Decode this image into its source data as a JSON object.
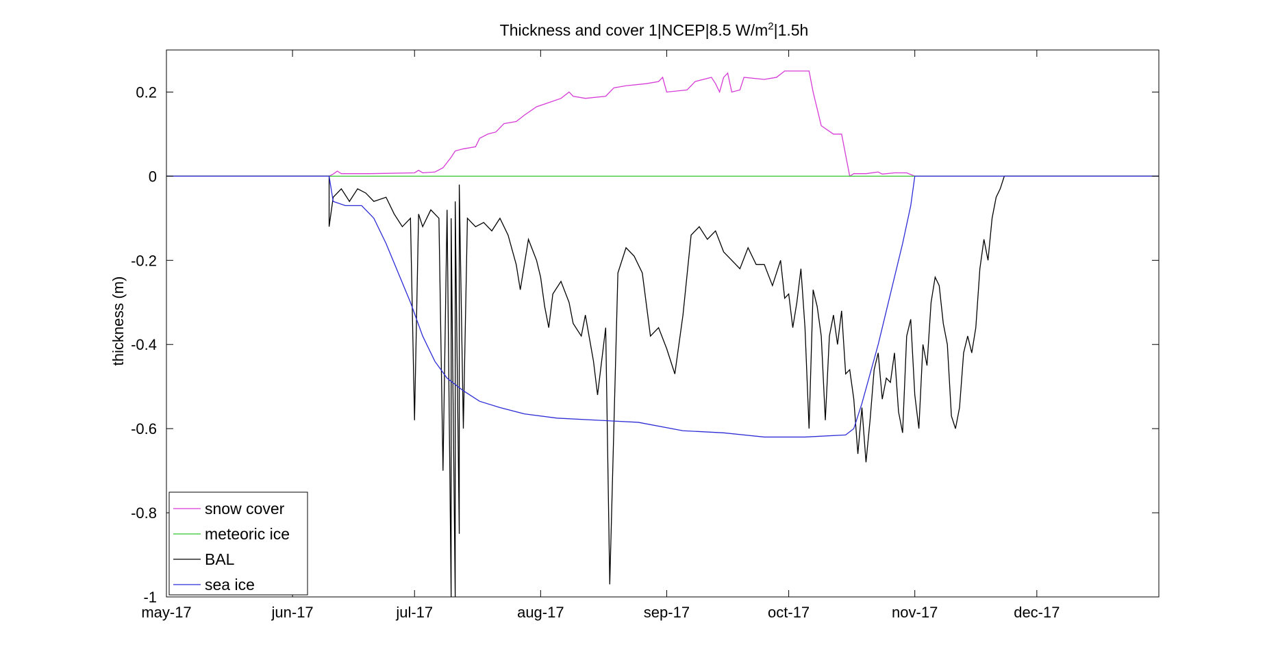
{
  "chart_data": {
    "type": "line",
    "title_main": "Thickness and cover 1|NCEP|8.5 W/m",
    "title_sup": "2",
    "title_tail": "|1.5h",
    "xlabel": "",
    "ylabel": "thickness (m)",
    "x_axis": "date",
    "xlim": [
      "2017-05-01",
      "2017-12-31"
    ],
    "ylim": [
      -1,
      0.3
    ],
    "yticks": [
      -1,
      -0.8,
      -0.6,
      -0.4,
      -0.2,
      0,
      0.2
    ],
    "ytick_labels": [
      "-1",
      "-0.8",
      "-0.6",
      "-0.4",
      "-0.2",
      "0",
      "0.2"
    ],
    "xticks": [
      "2017-05-01",
      "2017-06-01",
      "2017-07-01",
      "2017-08-01",
      "2017-09-01",
      "2017-10-01",
      "2017-11-01",
      "2017-12-01"
    ],
    "xtick_labels": [
      "may-17",
      "jun-17",
      "jul-17",
      "aug-17",
      "sep-17",
      "oct-17",
      "nov-17",
      "dec-17"
    ],
    "grid": false,
    "legend_position": "bottom-left",
    "series": [
      {
        "name": "snow cover",
        "color": "#d63ad6",
        "points": [
          [
            "2017-05-01",
            0
          ],
          [
            "2017-06-10",
            0
          ],
          [
            "2017-06-11",
            0.005
          ],
          [
            "2017-06-12",
            0.012
          ],
          [
            "2017-06-13",
            0.006
          ],
          [
            "2017-06-20",
            0.006
          ],
          [
            "2017-07-01",
            0.008
          ],
          [
            "2017-07-02",
            0.014
          ],
          [
            "2017-07-03",
            0.008
          ],
          [
            "2017-07-06",
            0.01
          ],
          [
            "2017-07-08",
            0.02
          ],
          [
            "2017-07-10",
            0.045
          ],
          [
            "2017-07-11",
            0.06
          ],
          [
            "2017-07-13",
            0.065
          ],
          [
            "2017-07-16",
            0.07
          ],
          [
            "2017-07-17",
            0.09
          ],
          [
            "2017-07-19",
            0.1
          ],
          [
            "2017-07-21",
            0.105
          ],
          [
            "2017-07-23",
            0.125
          ],
          [
            "2017-07-26",
            0.13
          ],
          [
            "2017-07-28",
            0.145
          ],
          [
            "2017-07-31",
            0.165
          ],
          [
            "2017-08-03",
            0.175
          ],
          [
            "2017-08-06",
            0.185
          ],
          [
            "2017-08-08",
            0.2
          ],
          [
            "2017-08-09",
            0.19
          ],
          [
            "2017-08-12",
            0.185
          ],
          [
            "2017-08-17",
            0.19
          ],
          [
            "2017-08-19",
            0.21
          ],
          [
            "2017-08-22",
            0.215
          ],
          [
            "2017-08-27",
            0.22
          ],
          [
            "2017-08-30",
            0.225
          ],
          [
            "2017-08-31",
            0.235
          ],
          [
            "2017-09-01",
            0.2
          ],
          [
            "2017-09-06",
            0.205
          ],
          [
            "2017-09-08",
            0.225
          ],
          [
            "2017-09-12",
            0.235
          ],
          [
            "2017-09-13",
            0.22
          ],
          [
            "2017-09-14",
            0.2
          ],
          [
            "2017-09-15",
            0.235
          ],
          [
            "2017-09-16",
            0.245
          ],
          [
            "2017-09-17",
            0.2
          ],
          [
            "2017-09-19",
            0.205
          ],
          [
            "2017-09-20",
            0.235
          ],
          [
            "2017-09-25",
            0.23
          ],
          [
            "2017-09-28",
            0.235
          ],
          [
            "2017-09-30",
            0.25
          ],
          [
            "2017-10-06",
            0.25
          ],
          [
            "2017-10-07",
            0.2
          ],
          [
            "2017-10-09",
            0.12
          ],
          [
            "2017-10-12",
            0.1
          ],
          [
            "2017-10-14",
            0.1
          ],
          [
            "2017-10-16",
            0.0
          ],
          [
            "2017-10-17",
            0.006
          ],
          [
            "2017-10-20",
            0.006
          ],
          [
            "2017-10-23",
            0.01
          ],
          [
            "2017-10-24",
            0.005
          ],
          [
            "2017-10-27",
            0.008
          ],
          [
            "2017-10-30",
            0.008
          ],
          [
            "2017-11-01",
            0
          ],
          [
            "2017-12-31",
            0
          ]
        ]
      },
      {
        "name": "meteoric ice",
        "color": "#2ec82e",
        "points": [
          [
            "2017-05-01",
            0
          ],
          [
            "2017-12-31",
            0
          ]
        ]
      },
      {
        "name": "BAL",
        "color": "#000000",
        "points": [
          [
            "2017-05-01",
            0
          ],
          [
            "2017-06-10",
            0
          ],
          [
            "2017-06-10",
            -0.12
          ],
          [
            "2017-06-11",
            -0.05
          ],
          [
            "2017-06-13",
            -0.03
          ],
          [
            "2017-06-15",
            -0.06
          ],
          [
            "2017-06-17",
            -0.03
          ],
          [
            "2017-06-19",
            -0.04
          ],
          [
            "2017-06-21",
            -0.06
          ],
          [
            "2017-06-24",
            -0.05
          ],
          [
            "2017-06-26",
            -0.09
          ],
          [
            "2017-06-28",
            -0.12
          ],
          [
            "2017-06-30",
            -0.1
          ],
          [
            "2017-07-01",
            -0.58
          ],
          [
            "2017-07-02",
            -0.09
          ],
          [
            "2017-07-03",
            -0.12
          ],
          [
            "2017-07-05",
            -0.08
          ],
          [
            "2017-07-07",
            -0.1
          ],
          [
            "2017-07-08",
            -0.7
          ],
          [
            "2017-07-09",
            -0.08
          ],
          [
            "2017-07-10",
            -1.0
          ],
          [
            "2017-07-10",
            -0.1
          ],
          [
            "2017-07-11",
            -1.0
          ],
          [
            "2017-07-11",
            -0.06
          ],
          [
            "2017-07-12",
            -0.85
          ],
          [
            "2017-07-12",
            -0.02
          ],
          [
            "2017-07-13",
            -0.6
          ],
          [
            "2017-07-14",
            -0.1
          ],
          [
            "2017-07-16",
            -0.12
          ],
          [
            "2017-07-18",
            -0.11
          ],
          [
            "2017-07-20",
            -0.13
          ],
          [
            "2017-07-22",
            -0.1
          ],
          [
            "2017-07-24",
            -0.14
          ],
          [
            "2017-07-26",
            -0.21
          ],
          [
            "2017-07-27",
            -0.27
          ],
          [
            "2017-07-29",
            -0.15
          ],
          [
            "2017-07-31",
            -0.2
          ],
          [
            "2017-08-01",
            -0.24
          ],
          [
            "2017-08-02",
            -0.31
          ],
          [
            "2017-08-03",
            -0.36
          ],
          [
            "2017-08-04",
            -0.28
          ],
          [
            "2017-08-06",
            -0.25
          ],
          [
            "2017-08-08",
            -0.3
          ],
          [
            "2017-08-09",
            -0.35
          ],
          [
            "2017-08-11",
            -0.38
          ],
          [
            "2017-08-12",
            -0.33
          ],
          [
            "2017-08-14",
            -0.44
          ],
          [
            "2017-08-15",
            -0.52
          ],
          [
            "2017-08-17",
            -0.36
          ],
          [
            "2017-08-18",
            -0.97
          ],
          [
            "2017-08-20",
            -0.23
          ],
          [
            "2017-08-22",
            -0.17
          ],
          [
            "2017-08-24",
            -0.19
          ],
          [
            "2017-08-26",
            -0.23
          ],
          [
            "2017-08-28",
            -0.38
          ],
          [
            "2017-08-30",
            -0.36
          ],
          [
            "2017-09-01",
            -0.41
          ],
          [
            "2017-09-03",
            -0.47
          ],
          [
            "2017-09-05",
            -0.33
          ],
          [
            "2017-09-07",
            -0.14
          ],
          [
            "2017-09-09",
            -0.12
          ],
          [
            "2017-09-11",
            -0.15
          ],
          [
            "2017-09-13",
            -0.13
          ],
          [
            "2017-09-15",
            -0.18
          ],
          [
            "2017-09-17",
            -0.2
          ],
          [
            "2017-09-19",
            -0.22
          ],
          [
            "2017-09-21",
            -0.17
          ],
          [
            "2017-09-23",
            -0.21
          ],
          [
            "2017-09-25",
            -0.21
          ],
          [
            "2017-09-27",
            -0.26
          ],
          [
            "2017-09-29",
            -0.2
          ],
          [
            "2017-09-30",
            -0.29
          ],
          [
            "2017-10-01",
            -0.28
          ],
          [
            "2017-10-02",
            -0.36
          ],
          [
            "2017-10-03",
            -0.3
          ],
          [
            "2017-10-04",
            -0.22
          ],
          [
            "2017-10-05",
            -0.36
          ],
          [
            "2017-10-06",
            -0.6
          ],
          [
            "2017-10-07",
            -0.27
          ],
          [
            "2017-10-08",
            -0.31
          ],
          [
            "2017-10-09",
            -0.38
          ],
          [
            "2017-10-10",
            -0.58
          ],
          [
            "2017-10-11",
            -0.38
          ],
          [
            "2017-10-12",
            -0.33
          ],
          [
            "2017-10-13",
            -0.4
          ],
          [
            "2017-10-14",
            -0.32
          ],
          [
            "2017-10-15",
            -0.47
          ],
          [
            "2017-10-16",
            -0.46
          ],
          [
            "2017-10-17",
            -0.53
          ],
          [
            "2017-10-18",
            -0.66
          ],
          [
            "2017-10-19",
            -0.55
          ],
          [
            "2017-10-20",
            -0.68
          ],
          [
            "2017-10-21",
            -0.58
          ],
          [
            "2017-10-22",
            -0.46
          ],
          [
            "2017-10-23",
            -0.42
          ],
          [
            "2017-10-24",
            -0.53
          ],
          [
            "2017-10-25",
            -0.48
          ],
          [
            "2017-10-26",
            -0.49
          ],
          [
            "2017-10-27",
            -0.42
          ],
          [
            "2017-10-28",
            -0.56
          ],
          [
            "2017-10-29",
            -0.61
          ],
          [
            "2017-10-30",
            -0.38
          ],
          [
            "2017-10-31",
            -0.34
          ],
          [
            "2017-11-01",
            -0.52
          ],
          [
            "2017-11-02",
            -0.6
          ],
          [
            "2017-11-03",
            -0.4
          ],
          [
            "2017-11-04",
            -0.45
          ],
          [
            "2017-11-05",
            -0.3
          ],
          [
            "2017-11-06",
            -0.24
          ],
          [
            "2017-11-07",
            -0.26
          ],
          [
            "2017-11-08",
            -0.35
          ],
          [
            "2017-11-09",
            -0.4
          ],
          [
            "2017-11-10",
            -0.57
          ],
          [
            "2017-11-11",
            -0.6
          ],
          [
            "2017-11-12",
            -0.55
          ],
          [
            "2017-11-13",
            -0.42
          ],
          [
            "2017-11-14",
            -0.38
          ],
          [
            "2017-11-15",
            -0.42
          ],
          [
            "2017-11-16",
            -0.36
          ],
          [
            "2017-11-17",
            -0.22
          ],
          [
            "2017-11-18",
            -0.15
          ],
          [
            "2017-11-19",
            -0.2
          ],
          [
            "2017-11-20",
            -0.1
          ],
          [
            "2017-11-21",
            -0.05
          ],
          [
            "2017-11-22",
            -0.03
          ],
          [
            "2017-11-23",
            0
          ],
          [
            "2017-12-31",
            0
          ]
        ]
      },
      {
        "name": "sea ice",
        "color": "#2b2bd6",
        "points": [
          [
            "2017-05-01",
            0
          ],
          [
            "2017-06-10",
            0
          ],
          [
            "2017-06-11",
            -0.06
          ],
          [
            "2017-06-14",
            -0.07
          ],
          [
            "2017-06-18",
            -0.07
          ],
          [
            "2017-06-21",
            -0.1
          ],
          [
            "2017-06-24",
            -0.16
          ],
          [
            "2017-06-27",
            -0.23
          ],
          [
            "2017-06-30",
            -0.3
          ],
          [
            "2017-07-03",
            -0.38
          ],
          [
            "2017-07-06",
            -0.44
          ],
          [
            "2017-07-09",
            -0.48
          ],
          [
            "2017-07-13",
            -0.51
          ],
          [
            "2017-07-17",
            -0.535
          ],
          [
            "2017-07-22",
            -0.55
          ],
          [
            "2017-07-28",
            -0.565
          ],
          [
            "2017-08-05",
            -0.575
          ],
          [
            "2017-08-15",
            -0.58
          ],
          [
            "2017-08-25",
            -0.585
          ],
          [
            "2017-09-05",
            -0.605
          ],
          [
            "2017-09-15",
            -0.61
          ],
          [
            "2017-09-25",
            -0.62
          ],
          [
            "2017-10-05",
            -0.62
          ],
          [
            "2017-10-15",
            -0.615
          ],
          [
            "2017-10-17",
            -0.6
          ],
          [
            "2017-10-19",
            -0.54
          ],
          [
            "2017-10-21",
            -0.47
          ],
          [
            "2017-10-23",
            -0.4
          ],
          [
            "2017-10-25",
            -0.32
          ],
          [
            "2017-10-27",
            -0.24
          ],
          [
            "2017-10-29",
            -0.16
          ],
          [
            "2017-10-31",
            -0.07
          ],
          [
            "2017-11-01",
            0
          ],
          [
            "2017-12-31",
            0
          ]
        ]
      }
    ]
  }
}
